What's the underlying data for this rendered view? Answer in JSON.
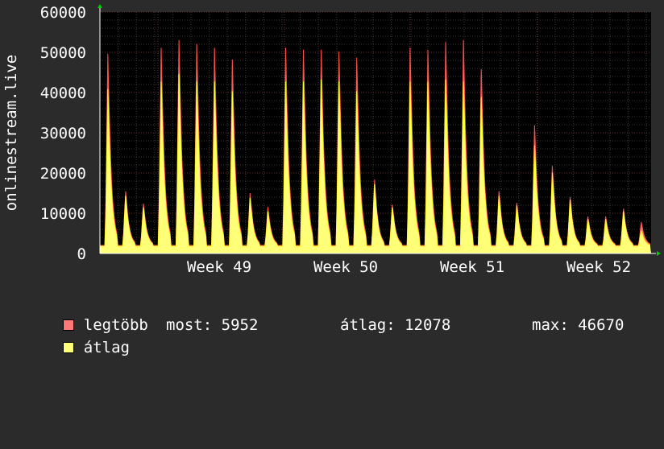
{
  "chart_data": {
    "type": "area",
    "ylabel": "onlinestream.live",
    "ylim": [
      0,
      60000
    ],
    "yticks": [
      0,
      10000,
      20000,
      30000,
      40000,
      50000,
      60000
    ],
    "ytick_labels": [
      "0",
      "10000",
      "20000",
      "30000",
      "40000",
      "50000",
      "60000"
    ],
    "xticks": [
      "Week 49",
      "Week 50",
      "Week 51",
      "Week 52"
    ],
    "grid": true,
    "legend_placement": "bottom",
    "days_daily_peaks": [
      {
        "max": 51500,
        "avg": 42500
      },
      {
        "max": 16000,
        "avg": 15000
      },
      {
        "max": 12800,
        "avg": 12000
      },
      {
        "max": 53000,
        "avg": 44500
      },
      {
        "max": 55000,
        "avg": 46500
      },
      {
        "max": 54000,
        "avg": 44500
      },
      {
        "max": 53000,
        "avg": 44500
      },
      {
        "max": 50000,
        "avg": 42000
      },
      {
        "max": 15500,
        "avg": 14500
      },
      {
        "max": 12000,
        "avg": 11000
      },
      {
        "max": 53000,
        "avg": 44500
      },
      {
        "max": 52500,
        "avg": 44500
      },
      {
        "max": 52500,
        "avg": 45000
      },
      {
        "max": 52000,
        "avg": 44500
      },
      {
        "max": 50500,
        "avg": 42000
      },
      {
        "max": 19000,
        "avg": 18000
      },
      {
        "max": 12500,
        "avg": 12000
      },
      {
        "max": 53000,
        "avg": 44500
      },
      {
        "max": 52500,
        "avg": 44500
      },
      {
        "max": 54500,
        "avg": 45000
      },
      {
        "max": 55000,
        "avg": 44500
      },
      {
        "max": 47500,
        "avg": 40500
      },
      {
        "max": 16000,
        "avg": 15000
      },
      {
        "max": 13000,
        "avg": 12500
      },
      {
        "max": 33000,
        "avg": 28000
      },
      {
        "max": 22500,
        "avg": 21000
      },
      {
        "max": 14500,
        "avg": 14000
      },
      {
        "max": 9500,
        "avg": 9000
      },
      {
        "max": 9500,
        "avg": 9000
      },
      {
        "max": 11500,
        "avg": 11000
      },
      {
        "max": 8000,
        "avg": 6000
      }
    ],
    "series": [
      {
        "name": "legtöbb",
        "color": "#ff7878",
        "line": "#ff5050"
      },
      {
        "name": "átlag",
        "color": "#ffff78",
        "line": "#ffff30"
      }
    ],
    "stats": {
      "most": "5952",
      "atlag": "12078",
      "max": "46670"
    }
  },
  "legend": {
    "max_label": "legtöbb",
    "avg_label": "átlag",
    "now_text": "most: 5952",
    "avg_text": "átlag: 12078",
    "max_text": "max: 46670"
  }
}
